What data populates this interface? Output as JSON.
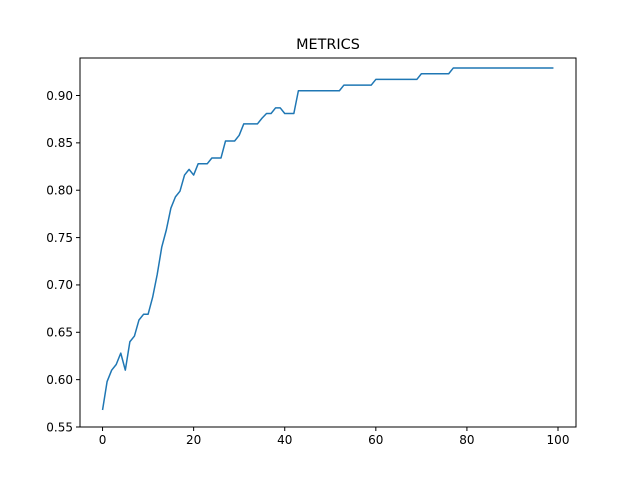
{
  "chart_data": {
    "type": "line",
    "title": "METRICS",
    "xlabel": "",
    "ylabel": "",
    "xlim": [
      -4.95,
      103.95
    ],
    "ylim": [
      0.55,
      0.9396
    ],
    "grid": false,
    "xticks": [
      0,
      20,
      40,
      60,
      80,
      100
    ],
    "xtick_labels": [
      "0",
      "20",
      "40",
      "60",
      "80",
      "100"
    ],
    "yticks": [
      0.55,
      0.6,
      0.65,
      0.7,
      0.75,
      0.8,
      0.85,
      0.9
    ],
    "ytick_labels": [
      "0.55",
      "0.60",
      "0.65",
      "0.70",
      "0.75",
      "0.80",
      "0.85",
      "0.90"
    ],
    "series": [
      {
        "color": "#1f77b4",
        "x": [
          0,
          1,
          2,
          3,
          4,
          5,
          6,
          7,
          8,
          9,
          10,
          11,
          12,
          13,
          14,
          15,
          16,
          17,
          18,
          19,
          20,
          21,
          22,
          23,
          24,
          25,
          26,
          27,
          28,
          29,
          30,
          31,
          32,
          33,
          34,
          35,
          36,
          37,
          38,
          39,
          40,
          41,
          42,
          43,
          44,
          45,
          46,
          47,
          48,
          49,
          50,
          51,
          52,
          53,
          54,
          55,
          56,
          57,
          58,
          59,
          60,
          61,
          62,
          63,
          64,
          65,
          66,
          67,
          68,
          69,
          70,
          71,
          72,
          73,
          74,
          75,
          76,
          77,
          78,
          79,
          80,
          81,
          82,
          83,
          84,
          85,
          86,
          87,
          88,
          89,
          90,
          91,
          92,
          93,
          94,
          95,
          96,
          97,
          98,
          99
        ],
        "y": [
          0.568,
          0.598,
          0.61,
          0.616,
          0.628,
          0.61,
          0.64,
          0.646,
          0.663,
          0.669,
          0.669,
          0.687,
          0.711,
          0.74,
          0.758,
          0.781,
          0.793,
          0.799,
          0.816,
          0.822,
          0.816,
          0.828,
          0.828,
          0.828,
          0.834,
          0.834,
          0.834,
          0.852,
          0.852,
          0.852,
          0.858,
          0.87,
          0.87,
          0.87,
          0.87,
          0.876,
          0.881,
          0.881,
          0.887,
          0.887,
          0.881,
          0.881,
          0.881,
          0.905,
          0.905,
          0.905,
          0.905,
          0.905,
          0.905,
          0.905,
          0.905,
          0.905,
          0.905,
          0.911,
          0.911,
          0.911,
          0.911,
          0.911,
          0.911,
          0.911,
          0.917,
          0.917,
          0.917,
          0.917,
          0.917,
          0.917,
          0.917,
          0.917,
          0.917,
          0.917,
          0.923,
          0.923,
          0.923,
          0.923,
          0.923,
          0.923,
          0.923,
          0.929,
          0.929,
          0.929,
          0.929,
          0.929,
          0.929,
          0.929,
          0.929,
          0.929,
          0.929,
          0.929,
          0.929,
          0.929,
          0.929,
          0.929,
          0.929,
          0.929,
          0.929,
          0.929,
          0.929,
          0.929,
          0.929,
          0.929
        ]
      }
    ]
  }
}
